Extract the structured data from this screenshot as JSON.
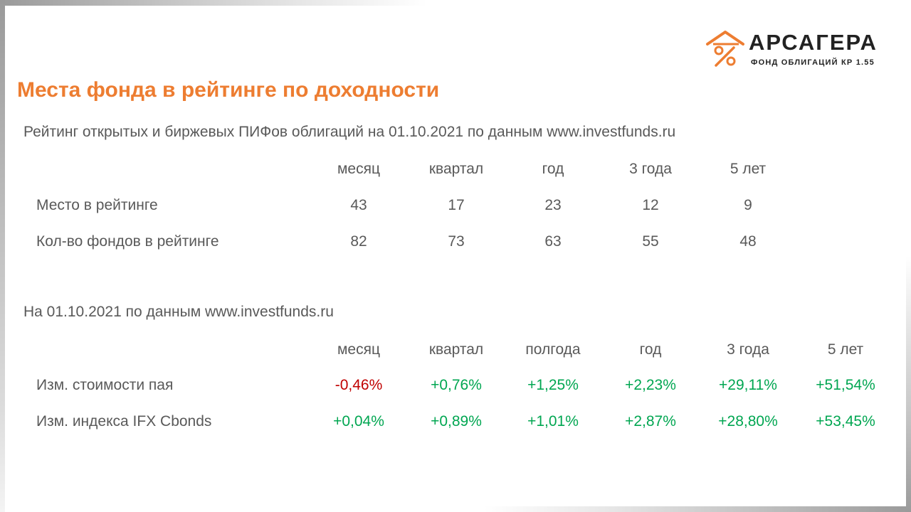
{
  "logo": {
    "name": "АРСАГЕРА",
    "subtitle": "ФОНД ОБЛИГАЦИЙ КР 1.55",
    "accent_color": "#ED7D31",
    "icon": "house-percent-icon"
  },
  "title": "Места фонда в рейтинге по доходности",
  "rating_section": {
    "heading": "Рейтинг открытых и биржевых ПИФов облигаций на 01.10.2021 по данным www.investfunds.ru",
    "columns": [
      "месяц",
      "квартал",
      "год",
      "3 года",
      "5 лет"
    ],
    "rows": [
      {
        "label": "Место в рейтинге",
        "values": [
          "43",
          "17",
          "23",
          "12",
          "9"
        ]
      },
      {
        "label": "Кол-во фондов в рейтинге",
        "values": [
          "82",
          "73",
          "63",
          "55",
          "48"
        ]
      }
    ]
  },
  "returns_section": {
    "heading": "На 01.10.2021 по данным www.investfunds.ru",
    "columns": [
      "месяц",
      "квартал",
      "полгода",
      "год",
      "3 года",
      "5 лет"
    ],
    "rows": [
      {
        "label": "Изм. стоимости пая",
        "values": [
          "-0,46%",
          "+0,76%",
          "+1,25%",
          "+2,23%",
          "+29,11%",
          "+51,54%"
        ]
      },
      {
        "label": "Изм. индекса IFX Cbonds",
        "values": [
          "+0,04%",
          "+0,89%",
          "+1,01%",
          "+2,87%",
          "+28,80%",
          "+53,45%"
        ]
      }
    ]
  },
  "colors": {
    "title": "#ED7D31",
    "text": "#595959",
    "negative": "#C00000",
    "positive": "#00A651"
  }
}
